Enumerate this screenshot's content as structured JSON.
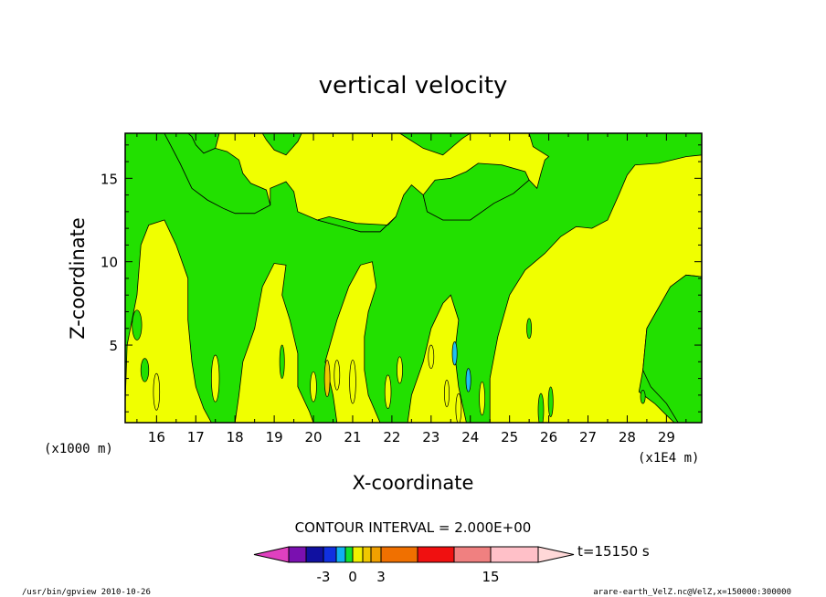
{
  "chart_data": {
    "type": "heatmap",
    "title": "vertical velocity",
    "xlabel": "X-coordinate",
    "ylabel": "Z-coordinate",
    "x_unit_note": "(x1E4 m)",
    "y_unit_note": "(x1000 m)",
    "xlim": [
      15.2,
      29.9
    ],
    "ylim": [
      0.35,
      17.7
    ],
    "x_ticks": [
      16,
      17,
      18,
      19,
      20,
      21,
      22,
      23,
      24,
      25,
      26,
      27,
      28,
      29
    ],
    "y_ticks": [
      5,
      10,
      15
    ],
    "contour_interval_text": "CONTOUR INTERVAL = 2.000E+00",
    "time_label": "t=15150 s",
    "dominant_levels": [
      "green (-1 to 0)",
      "yellow (0 to 1)"
    ],
    "colorbar": {
      "colors": [
        "#e040c0",
        "#7a10b0",
        "#1010a0",
        "#1030e0",
        "#10b0f0",
        "#10e030",
        "#10c010",
        "#f0f000",
        "#f0c800",
        "#f0a000",
        "#f07000",
        "#f04000",
        "#f01010",
        "#f08080",
        "#ffc0c8",
        "#ffd8d8"
      ],
      "tick_labels": [
        "-3",
        "0",
        "3",
        "15"
      ]
    },
    "yellow_regions": [
      [
        [
          15.2,
          0.35
        ],
        [
          15.2,
          1.5
        ],
        [
          15.25,
          5
        ],
        [
          15.5,
          8
        ],
        [
          15.6,
          11
        ],
        [
          15.8,
          12.2
        ],
        [
          16.2,
          12.5
        ],
        [
          16.5,
          11
        ],
        [
          16.8,
          9
        ],
        [
          16.8,
          6.5
        ],
        [
          16.9,
          4
        ],
        [
          17.0,
          2.5
        ],
        [
          17.2,
          1.2
        ],
        [
          17.4,
          0.35
        ]
      ],
      [
        [
          16.2,
          17.7
        ],
        [
          16.6,
          15.9
        ],
        [
          16.9,
          14.4
        ],
        [
          17.3,
          13.7
        ],
        [
          17.7,
          13.2
        ],
        [
          18.0,
          12.9
        ],
        [
          18.5,
          12.9
        ],
        [
          18.9,
          13.4
        ],
        [
          18.9,
          14.4
        ],
        [
          19.3,
          14.8
        ],
        [
          19.5,
          14.2
        ],
        [
          19.6,
          13.0
        ],
        [
          20.1,
          12.5
        ],
        [
          21.2,
          11.8
        ],
        [
          21.7,
          11.8
        ],
        [
          22.1,
          12.7
        ],
        [
          22.3,
          14.0
        ],
        [
          22.5,
          14.6
        ],
        [
          22.8,
          14.0
        ],
        [
          22.9,
          13.0
        ],
        [
          23.3,
          12.5
        ],
        [
          24.0,
          12.5
        ],
        [
          24.6,
          13.5
        ],
        [
          25.1,
          14.1
        ],
        [
          25.5,
          14.9
        ],
        [
          25.7,
          14.4
        ],
        [
          25.8,
          15.3
        ],
        [
          25.9,
          16.1
        ],
        [
          26.0,
          16.3
        ],
        [
          25.6,
          16.9
        ],
        [
          25.5,
          17.7
        ],
        [
          24.0,
          17.7
        ],
        [
          23.8,
          17.4
        ],
        [
          23.3,
          16.4
        ],
        [
          22.8,
          16.8
        ],
        [
          22.4,
          17.4
        ],
        [
          22.2,
          17.7
        ],
        [
          19.7,
          17.7
        ],
        [
          19.6,
          17.2
        ],
        [
          19.3,
          16.4
        ],
        [
          19.0,
          16.7
        ],
        [
          18.8,
          17.3
        ],
        [
          18.7,
          17.7
        ],
        [
          17.6,
          17.7
        ],
        [
          17.5,
          16.8
        ],
        [
          17.2,
          16.5
        ],
        [
          17.0,
          17.0
        ],
        [
          16.9,
          17.5
        ],
        [
          16.8,
          17.7
        ]
      ],
      [
        [
          18.0,
          0.35
        ],
        [
          18.1,
          2.0
        ],
        [
          18.2,
          4.0
        ],
        [
          18.5,
          6.0
        ],
        [
          18.7,
          8.5
        ],
        [
          19.0,
          9.9
        ],
        [
          19.3,
          9.8
        ],
        [
          19.2,
          8.0
        ],
        [
          19.4,
          6.5
        ],
        [
          19.6,
          4.5
        ],
        [
          19.6,
          2.5
        ],
        [
          19.9,
          1.0
        ],
        [
          20.0,
          0.35
        ]
      ],
      [
        [
          20.6,
          0.35
        ],
        [
          20.5,
          2.0
        ],
        [
          20.3,
          4.0
        ],
        [
          20.6,
          6.5
        ],
        [
          20.9,
          8.5
        ],
        [
          21.2,
          9.8
        ],
        [
          21.5,
          10.0
        ],
        [
          21.6,
          8.5
        ],
        [
          21.4,
          7.0
        ],
        [
          21.3,
          5.5
        ],
        [
          21.3,
          3.5
        ],
        [
          21.4,
          2.0
        ],
        [
          21.7,
          0.35
        ]
      ],
      [
        [
          22.4,
          0.35
        ],
        [
          22.5,
          2.0
        ],
        [
          22.8,
          4.0
        ],
        [
          23.0,
          6.0
        ],
        [
          23.3,
          7.5
        ],
        [
          23.5,
          8.0
        ],
        [
          23.7,
          6.5
        ],
        [
          23.6,
          4.5
        ],
        [
          23.7,
          2.5
        ],
        [
          23.9,
          0.35
        ]
      ],
      [
        [
          24.5,
          0.35
        ],
        [
          24.5,
          3.0
        ],
        [
          24.7,
          5.5
        ],
        [
          25.0,
          8.0
        ],
        [
          25.4,
          9.5
        ],
        [
          25.9,
          10.5
        ],
        [
          26.3,
          11.5
        ],
        [
          26.7,
          12.1
        ],
        [
          27.1,
          12.0
        ],
        [
          27.5,
          12.5
        ],
        [
          27.8,
          14.1
        ],
        [
          28.0,
          15.2
        ],
        [
          28.2,
          15.8
        ],
        [
          28.8,
          15.9
        ],
        [
          29.5,
          16.3
        ],
        [
          29.9,
          16.4
        ],
        [
          29.9,
          9.1
        ],
        [
          29.5,
          9.2
        ],
        [
          29.1,
          8.5
        ],
        [
          28.5,
          6.0
        ],
        [
          28.4,
          3.5
        ],
        [
          28.3,
          2.2
        ],
        [
          28.7,
          1.5
        ],
        [
          29.0,
          0.8
        ],
        [
          29.2,
          0.35
        ]
      ]
    ],
    "green_regions": [
      [
        [
          16.2,
          17.7
        ],
        [
          16.6,
          15.9
        ],
        [
          16.9,
          14.4
        ],
        [
          17.3,
          13.7
        ],
        [
          17.7,
          13.2
        ],
        [
          18.0,
          12.9
        ],
        [
          18.5,
          12.9
        ],
        [
          18.9,
          13.4
        ],
        [
          18.8,
          14.3
        ],
        [
          18.4,
          14.7
        ],
        [
          18.2,
          15.3
        ],
        [
          18.1,
          16.1
        ],
        [
          17.8,
          16.6
        ],
        [
          17.5,
          16.8
        ],
        [
          17.2,
          16.5
        ],
        [
          17.0,
          17.0
        ],
        [
          16.9,
          17.5
        ],
        [
          16.8,
          17.7
        ]
      ],
      [
        [
          22.8,
          14.0
        ],
        [
          22.9,
          13.0
        ],
        [
          23.3,
          12.5
        ],
        [
          24.0,
          12.5
        ],
        [
          24.6,
          13.5
        ],
        [
          25.1,
          14.1
        ],
        [
          25.5,
          14.9
        ],
        [
          25.4,
          15.4
        ],
        [
          24.8,
          15.8
        ],
        [
          24.2,
          15.9
        ],
        [
          23.9,
          15.4
        ],
        [
          23.5,
          15.0
        ],
        [
          23.1,
          14.9
        ]
      ],
      [
        [
          20.1,
          12.5
        ],
        [
          21.2,
          11.8
        ],
        [
          21.7,
          11.8
        ],
        [
          22.1,
          12.7
        ],
        [
          21.9,
          12.2
        ],
        [
          21.1,
          12.3
        ],
        [
          20.4,
          12.7
        ]
      ],
      [
        [
          29.9,
          9.1
        ],
        [
          29.5,
          9.2
        ],
        [
          29.1,
          8.5
        ],
        [
          28.5,
          6.0
        ],
        [
          28.4,
          3.5
        ],
        [
          28.6,
          2.5
        ],
        [
          29.0,
          1.5
        ],
        [
          29.3,
          0.35
        ],
        [
          29.9,
          0.35
        ]
      ]
    ]
  }
}
